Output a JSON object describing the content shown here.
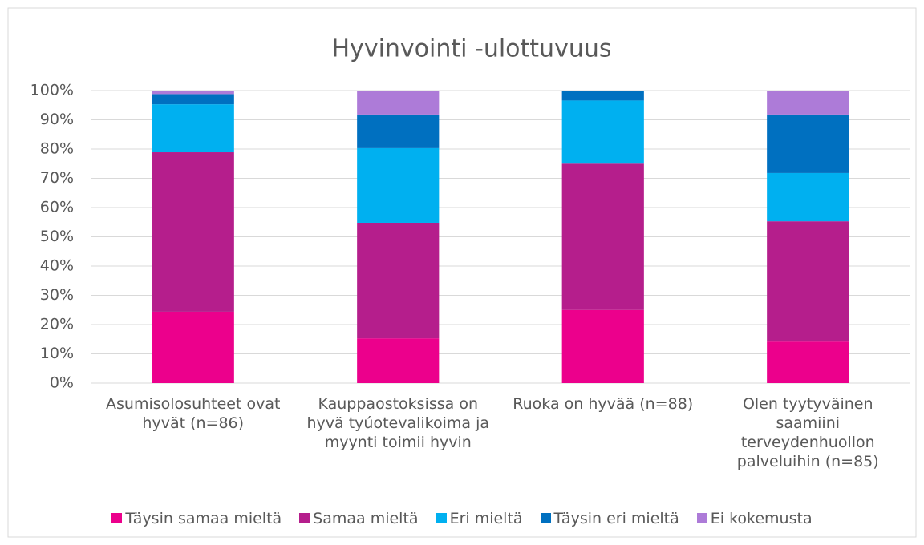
{
  "chart_data": {
    "type": "stacked_bar",
    "title": "Hyvinvointi -ulottuvuus",
    "categories": [
      "Asumisolosuhteet ovat hyvät (n=86)",
      "Kauppaostoksissa on hyvä tyúotevalikoima ja myynti toimii hyvin",
      "Ruoka on hyvää (n=88)",
      "Olen tyytyväinen saamiini terveydenhuollon palveluihin (n=85)"
    ],
    "series": [
      {
        "name": "Täysin samaa mieltä",
        "color": "#ec008c",
        "values": [
          24.4,
          15.3,
          25,
          14.2
        ]
      },
      {
        "name": "Samaa mieltä",
        "color": "#b51e8c",
        "values": [
          54.5,
          39.5,
          50,
          41.1
        ]
      },
      {
        "name": "Eri mieltä",
        "color": "#00b0f0",
        "values": [
          16.4,
          25.5,
          21.6,
          16.5
        ]
      },
      {
        "name": "Täysin eri mieltä",
        "color": "#0070c0",
        "values": [
          3.5,
          11.5,
          3.4,
          20
        ]
      },
      {
        "name": "Ei kokemusta",
        "color": "#ad7bd8",
        "values": [
          1.2,
          8.2,
          0,
          8.2
        ]
      }
    ],
    "ylim": [
      0,
      100
    ],
    "yticks": [
      {
        "value": 0,
        "label": "0%"
      },
      {
        "value": 10,
        "label": "10%"
      },
      {
        "value": 20,
        "label": "20%"
      },
      {
        "value": 30,
        "label": "30%"
      },
      {
        "value": 40,
        "label": "40%"
      },
      {
        "value": 50,
        "label": "50%"
      },
      {
        "value": 60,
        "label": "60%"
      },
      {
        "value": 70,
        "label": "70%"
      },
      {
        "value": 80,
        "label": "80%"
      },
      {
        "value": 90,
        "label": "90%"
      },
      {
        "value": 100,
        "label": "100%"
      }
    ],
    "grid": true,
    "legend": "bottom"
  }
}
